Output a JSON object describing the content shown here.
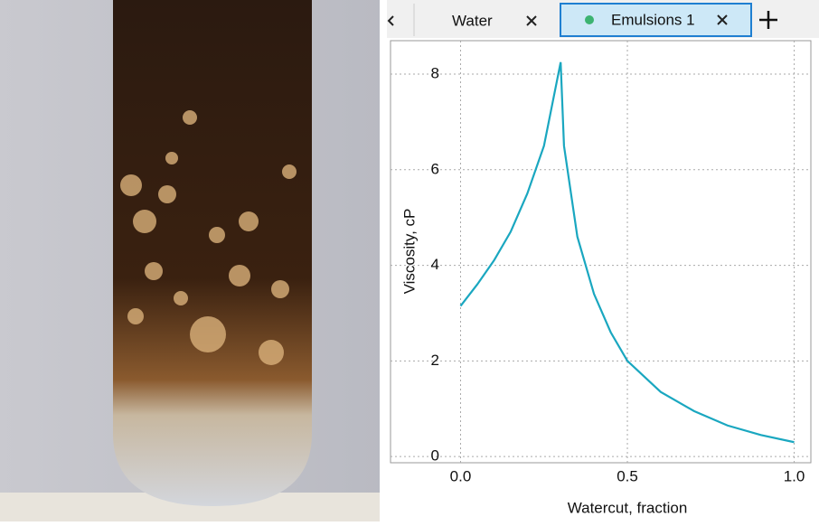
{
  "tabs": [
    "Water",
    "Emulsions 1"
  ],
  "chart_data": {
    "type": "line",
    "xlabel": "Watercut, fraction",
    "ylabel": "Viscosity, cP",
    "series": [
      {
        "color": "#1aa7c0",
        "x": [
          0,
          0.05,
          0.1,
          0.15,
          0.2,
          0.25,
          0.3,
          0.31,
          0.35,
          0.4,
          0.45,
          0.5,
          0.6,
          0.7,
          0.8,
          0.9,
          1.0
        ],
        "values": [
          3.15,
          3.6,
          4.1,
          4.7,
          5.5,
          6.5,
          8.25,
          6.5,
          4.6,
          3.4,
          2.6,
          2.0,
          1.35,
          0.95,
          0.65,
          0.45,
          0.3
        ]
      }
    ],
    "xlim": [
      -0.21,
      1.05
    ],
    "ylim": [
      -0.13,
      8.7
    ],
    "xticks": [
      {
        "value": 0,
        "label": "0.0"
      },
      {
        "value": 0.5,
        "label": "0.5"
      },
      {
        "value": 1,
        "label": "1.0"
      }
    ],
    "yticks": [
      0,
      2,
      4,
      6,
      8
    ],
    "grid": true
  }
}
